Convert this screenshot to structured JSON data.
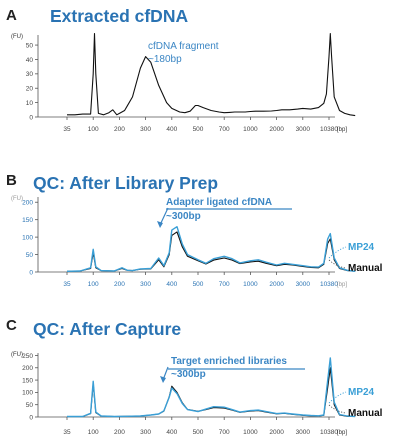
{
  "colors": {
    "title": "#2a73b3",
    "mp24": "#3a9fd6",
    "manual": "#111111",
    "annotation": "#3b86c4",
    "axis": "#333333"
  },
  "chart_data": [
    {
      "type": "line",
      "panel": "A",
      "title": "Extracted cfDNA",
      "y_unit": "(FU)",
      "x_unit": "[bp]",
      "y_ticks": [
        "50",
        "40",
        "30",
        "20",
        "10",
        "0"
      ],
      "ylim": [
        0,
        57
      ],
      "x_ticks": [
        "35",
        "100",
        "200",
        "300",
        "400",
        "500",
        "700",
        "1000",
        "2000",
        "3000",
        "10380"
      ],
      "annotation": {
        "line1": "cfDNA fragment",
        "line2": "~180bp"
      },
      "series": [
        {
          "color": "#111111",
          "x": [
            0,
            0.3,
            0.6,
            0.9,
            1.0,
            1.05,
            1.1,
            1.2,
            1.4,
            1.6,
            1.75,
            1.9,
            2.0,
            2.2,
            2.5,
            2.8,
            3.0,
            3.2,
            3.5,
            3.8,
            4.0,
            4.3,
            4.5,
            4.7,
            4.9,
            5.0,
            5.2,
            5.5,
            5.8,
            6.0,
            6.2,
            6.4,
            6.6,
            6.8,
            7.0,
            7.2,
            7.5,
            7.8,
            8.0,
            8.2,
            8.5,
            8.8,
            9.0,
            9.3,
            9.6,
            9.8,
            9.9,
            10.0,
            10.05,
            10.1,
            10.2,
            10.4,
            10.6,
            10.8,
            11.0
          ],
          "values": [
            1.5,
            1.5,
            2.0,
            2.0,
            30,
            58,
            30,
            2.5,
            1.5,
            3.0,
            5.0,
            1.5,
            2.5,
            4.5,
            14,
            34,
            42,
            38,
            22,
            10,
            6,
            3.5,
            3.0,
            4.0,
            8.0,
            8.0,
            6.5,
            4.5,
            3.5,
            3.0,
            3.2,
            3.5,
            3.5,
            3.5,
            3.8,
            4.0,
            4.0,
            4.2,
            4.5,
            5.0,
            5.0,
            5.5,
            6.0,
            5.5,
            6.5,
            9.5,
            16,
            42,
            58,
            42,
            14,
            4.5,
            2.5,
            1.5,
            1.0
          ]
        }
      ]
    },
    {
      "type": "line",
      "panel": "B",
      "title": "QC: After Library Prep",
      "y_unit": "(FU)",
      "x_unit": "[bp]",
      "y_ticks": [
        "200",
        "150",
        "100",
        "50",
        "0"
      ],
      "ylim": [
        0,
        215
      ],
      "x_ticks": [
        "35",
        "100",
        "200",
        "300",
        "400",
        "500",
        "700",
        "1000",
        "2000",
        "3000",
        "10380"
      ],
      "annotation": {
        "line1": "Adapter ligated cfDNA",
        "line2": "~300bp"
      },
      "legend": [
        "MP24",
        "Manual"
      ],
      "series": [
        {
          "name": "MP24",
          "color": "#3a9fd6",
          "x": [
            0,
            0.5,
            0.9,
            1.0,
            1.1,
            1.3,
            1.8,
            2.1,
            2.3,
            2.5,
            2.8,
            3.2,
            3.5,
            3.7,
            3.9,
            4.0,
            4.2,
            4.4,
            4.6,
            5.0,
            5.3,
            5.6,
            6.0,
            6.3,
            6.6,
            7.0,
            7.3,
            7.6,
            8.0,
            8.3,
            8.6,
            9.0,
            9.3,
            9.6,
            9.8,
            9.95,
            10.05,
            10.2,
            10.4,
            10.7,
            11.0
          ],
          "values": [
            2,
            3,
            12,
            65,
            15,
            4,
            3,
            12,
            5,
            4,
            9,
            10,
            40,
            18,
            55,
            120,
            130,
            80,
            50,
            35,
            25,
            38,
            45,
            38,
            26,
            32,
            35,
            28,
            20,
            25,
            22,
            18,
            15,
            14,
            25,
            95,
            110,
            40,
            12,
            5,
            2
          ]
        },
        {
          "name": "Manual",
          "color": "#111111",
          "x": [
            0,
            0.5,
            0.9,
            1.0,
            1.1,
            1.3,
            1.8,
            2.1,
            2.3,
            2.5,
            2.8,
            3.2,
            3.5,
            3.7,
            3.9,
            4.0,
            4.2,
            4.4,
            4.6,
            5.0,
            5.3,
            5.6,
            6.0,
            6.3,
            6.6,
            7.0,
            7.3,
            7.6,
            8.0,
            8.3,
            8.6,
            9.0,
            9.3,
            9.6,
            9.8,
            9.95,
            10.05,
            10.2,
            10.4,
            10.7,
            11.0
          ],
          "values": [
            2,
            3,
            10,
            55,
            12,
            4,
            3,
            10,
            5,
            4,
            8,
            9,
            35,
            15,
            50,
            105,
            115,
            72,
            45,
            32,
            23,
            34,
            40,
            34,
            24,
            29,
            31,
            25,
            18,
            22,
            20,
            16,
            13,
            12,
            22,
            82,
            95,
            35,
            10,
            4,
            2
          ]
        }
      ]
    },
    {
      "type": "line",
      "panel": "C",
      "title": "QC: After Capture",
      "y_unit": "(FU)",
      "x_unit": "[bp]",
      "y_ticks": [
        "250",
        "200",
        "150",
        "100",
        "50",
        "0"
      ],
      "ylim": [
        0,
        260
      ],
      "x_ticks": [
        "35",
        "100",
        "200",
        "300",
        "400",
        "500",
        "700",
        "1000",
        "2000",
        "3000",
        "10380"
      ],
      "annotation": {
        "line1": "Target enriched libraries",
        "line2": "~300bp"
      },
      "legend": [
        "MP24",
        "Manual"
      ],
      "series": [
        {
          "name": "MP24",
          "color": "#3a9fd6",
          "x": [
            0,
            0.6,
            0.9,
            1.0,
            1.1,
            1.3,
            1.8,
            2.3,
            2.8,
            3.2,
            3.5,
            3.7,
            3.9,
            4.0,
            4.2,
            4.4,
            4.6,
            5.0,
            5.3,
            5.6,
            6.0,
            6.3,
            6.6,
            7.0,
            7.3,
            7.6,
            8.0,
            8.3,
            8.6,
            9.0,
            9.3,
            9.6,
            9.8,
            9.95,
            10.05,
            10.2,
            10.4,
            10.7,
            11.0
          ],
          "values": [
            2,
            2,
            15,
            145,
            20,
            4,
            2,
            3,
            4,
            8,
            12,
            25,
            80,
            118,
            95,
            55,
            30,
            22,
            32,
            42,
            40,
            30,
            20,
            26,
            28,
            22,
            14,
            16,
            12,
            8,
            6,
            5,
            8,
            150,
            240,
            60,
            10,
            4,
            2
          ]
        },
        {
          "name": "Manual",
          "color": "#111111",
          "x": [
            0,
            0.6,
            0.9,
            1.0,
            1.1,
            1.3,
            1.8,
            2.3,
            2.8,
            3.2,
            3.5,
            3.7,
            3.9,
            4.0,
            4.2,
            4.4,
            4.6,
            5.0,
            5.3,
            5.6,
            6.0,
            6.3,
            6.6,
            7.0,
            7.3,
            7.6,
            8.0,
            8.3,
            8.6,
            9.0,
            9.3,
            9.6,
            9.8,
            9.95,
            10.05,
            10.2,
            10.4,
            10.7,
            11.0
          ],
          "values": [
            2,
            2,
            14,
            135,
            18,
            4,
            2,
            3,
            4,
            8,
            12,
            24,
            82,
            125,
            100,
            58,
            31,
            23,
            30,
            38,
            36,
            28,
            19,
            24,
            26,
            20,
            13,
            15,
            11,
            7,
            5,
            4,
            7,
            120,
            200,
            50,
            8,
            3,
            2
          ]
        }
      ]
    }
  ]
}
